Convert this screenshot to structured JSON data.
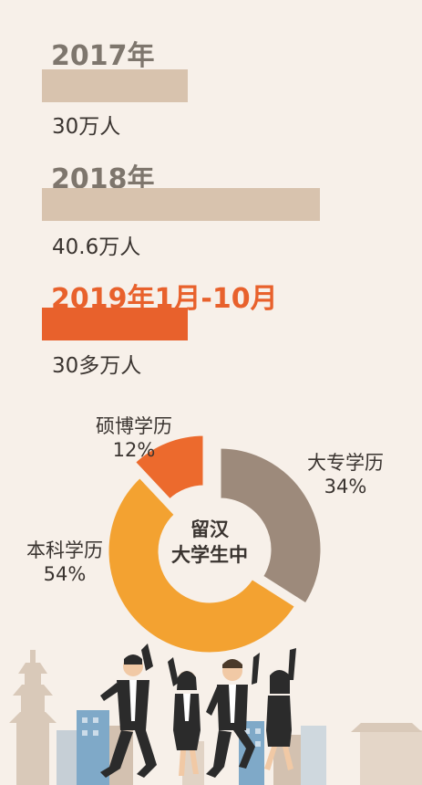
{
  "chart_data": [
    {
      "type": "bar",
      "categories": [
        "2017年",
        "2018年",
        "2019年1月-10月"
      ],
      "values": [
        30,
        40.6,
        30
      ],
      "value_labels": [
        "30万人",
        "40.6万人",
        "30多万人"
      ],
      "unit": "万人",
      "colors": [
        "#d8c3ae",
        "#d8c3ae",
        "#e8612c"
      ]
    },
    {
      "type": "pie",
      "center_label": [
        "留汉",
        "大学生中"
      ],
      "slices": [
        {
          "name": "大专学历",
          "value": 34,
          "label": "34%",
          "color": "#9d8a7b"
        },
        {
          "name": "本科学历",
          "value": 54,
          "label": "54%",
          "color": "#f3a231"
        },
        {
          "name": "硕博学历",
          "value": 12,
          "label": "12%",
          "color": "#ec6a2d"
        }
      ]
    }
  ],
  "illustration": {
    "description_icon": "cheering-people-cityscape-icon",
    "colors": {
      "skyline": "#c9b8a7",
      "suits": "#2b2b2b",
      "shirt": "#ffffff"
    }
  }
}
